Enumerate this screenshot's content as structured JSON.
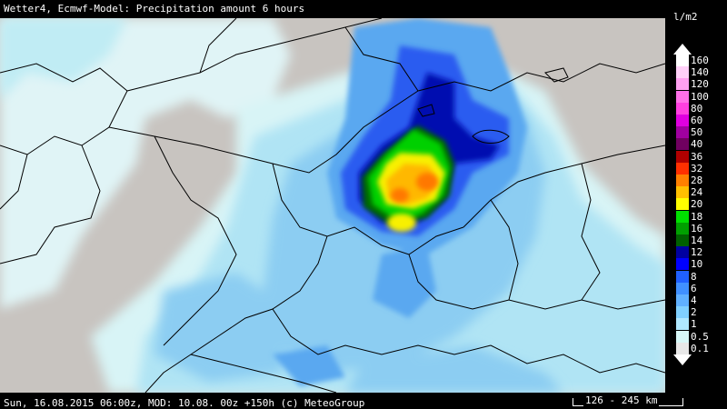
{
  "header": {
    "title": "Wetter4, Ecmwf-Model: Precipitation amount 6 hours",
    "unit": "l/m2"
  },
  "legend": {
    "items": [
      {
        "label": "160",
        "color": "#ffffff"
      },
      {
        "label": "140",
        "color": "#ffd0f8"
      },
      {
        "label": "120",
        "color": "#ffa0f0"
      },
      {
        "label": "100",
        "color": "#ff70e8"
      },
      {
        "label": "80",
        "color": "#ff40e0"
      },
      {
        "label": "60",
        "color": "#e000e0"
      },
      {
        "label": "50",
        "color": "#a000a0"
      },
      {
        "label": "40",
        "color": "#700060"
      },
      {
        "label": "36",
        "color": "#b00000"
      },
      {
        "label": "32",
        "color": "#ff3000"
      },
      {
        "label": "28",
        "color": "#ff8000"
      },
      {
        "label": "24",
        "color": "#ffc000"
      },
      {
        "label": "20",
        "color": "#ffff00"
      },
      {
        "label": "18",
        "color": "#00e000"
      },
      {
        "label": "16",
        "color": "#00a000"
      },
      {
        "label": "14",
        "color": "#006000"
      },
      {
        "label": "12",
        "color": "#0000a0"
      },
      {
        "label": "10",
        "color": "#0000ff"
      },
      {
        "label": "8",
        "color": "#2060ff"
      },
      {
        "label": "6",
        "color": "#4090ff"
      },
      {
        "label": "4",
        "color": "#60b0ff"
      },
      {
        "label": "2",
        "color": "#80d0ff"
      },
      {
        "label": "1",
        "color": "#b0e8ff"
      },
      {
        "label": "0.5",
        "color": "#d8f8f8"
      },
      {
        "label": "0.1",
        "color": "#e8e8e8"
      }
    ]
  },
  "footer": {
    "timestamp": "Sun, 16.08.2015 06:00z, MOD: 10.08. 00z +150h (c) MeteoGroup",
    "scale": "126 - 245 km"
  },
  "map": {
    "background_color": "#c8c4c0",
    "border_color": "#000000"
  }
}
